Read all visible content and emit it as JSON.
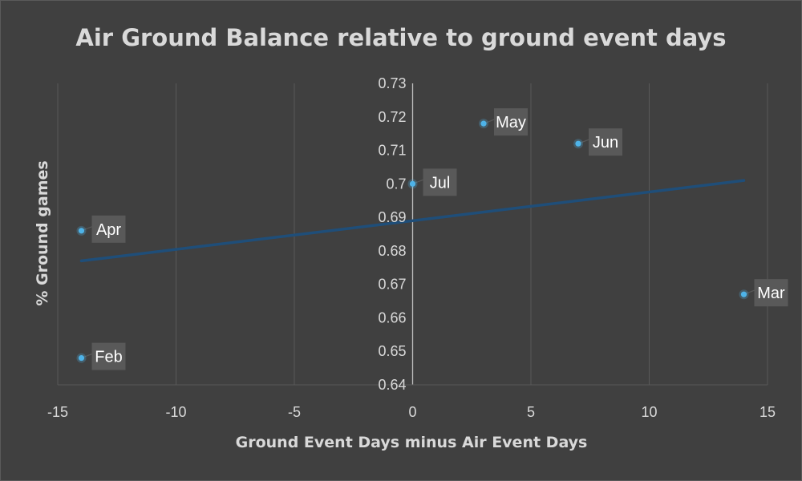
{
  "chart_data": {
    "type": "scatter",
    "title": "Air Ground Balance relative to ground event days",
    "xlabel": "Ground Event Days minus Air Event Days",
    "ylabel": "% Ground games",
    "xlim": [
      -15,
      15
    ],
    "ylim": [
      0.64,
      0.73
    ],
    "x_ticks": [
      -15,
      -10,
      -5,
      0,
      5,
      10,
      15
    ],
    "y_ticks": [
      0.64,
      0.65,
      0.66,
      0.67,
      0.68,
      0.69,
      0.7,
      0.71,
      0.72,
      0.73
    ],
    "y_tick_labels": [
      "0.64",
      "0.65",
      "0.66",
      "0.67",
      "0.68",
      "0.69",
      "0.7",
      "0.71",
      "0.72",
      "0.73"
    ],
    "grid": "vertical",
    "legend": "none",
    "points": [
      {
        "label": "Feb",
        "x": -14,
        "y": 0.648
      },
      {
        "label": "Apr",
        "x": -14,
        "y": 0.686
      },
      {
        "label": "Jul",
        "x": 0,
        "y": 0.7
      },
      {
        "label": "May",
        "x": 3,
        "y": 0.718
      },
      {
        "label": "Jun",
        "x": 7,
        "y": 0.712
      },
      {
        "label": "Mar",
        "x": 14,
        "y": 0.667
      }
    ],
    "trendline": {
      "type": "linear",
      "x": [
        -14,
        14
      ],
      "y": [
        0.677,
        0.701
      ]
    },
    "colors": {
      "background": "#404040",
      "marker": "#4eb3e8",
      "trendline": "#1f4e79",
      "text": "#d9d9d9",
      "label_box": "#595959"
    }
  }
}
